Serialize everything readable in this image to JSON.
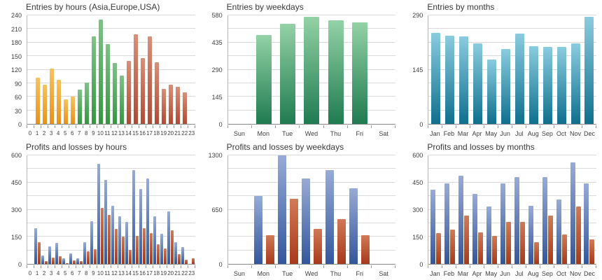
{
  "theme": {
    "background": "#ffffff",
    "grid_color": "#d9d9d9",
    "axis_color": "#8a8a8a",
    "label_color": "#3d3d3d",
    "title_color": "#383838",
    "profit_blue_top": "#97abd6",
    "profit_blue_bottom": "#33569c",
    "loss_red_top": "#d17a57",
    "loss_red_bottom": "#a63a1b"
  },
  "chart_data": [
    {
      "type": "bar",
      "title": "Entries by hours (Asia,Europe,USA)",
      "xlabel": "",
      "ylabel": "",
      "ylim": [
        0,
        240
      ],
      "y_labels": [
        0,
        30,
        60,
        90,
        120,
        150,
        180,
        210,
        240
      ],
      "grid_intervals": 8,
      "legend": "none",
      "categories": [
        "0",
        "1",
        "2",
        "3",
        "4",
        "5",
        "6",
        "7",
        "8",
        "9",
        "10",
        "11",
        "12",
        "13",
        "14",
        "15",
        "16",
        "17",
        "18",
        "19",
        "20",
        "21",
        "22",
        "23"
      ],
      "values": [
        0,
        102,
        86,
        123,
        97,
        54,
        61,
        76,
        92,
        194,
        230,
        176,
        135,
        107,
        139,
        198,
        146,
        193,
        136,
        78,
        86,
        82,
        69,
        0
      ],
      "palette": {
        "asia": {
          "top": "#f7c35f",
          "bottom": "#e8911a"
        },
        "europe": {
          "top": "#7fc289",
          "bottom": "#35973f"
        },
        "usa": {
          "top": "#d98f78",
          "bottom": "#b14a31"
        }
      },
      "value_palette": [
        "",
        "asia",
        "asia",
        "asia",
        "asia",
        "asia",
        "asia",
        "europe",
        "europe",
        "europe",
        "europe",
        "europe",
        "europe",
        "europe",
        "usa",
        "usa",
        "usa",
        "usa",
        "usa",
        "usa",
        "usa",
        "usa",
        "usa",
        ""
      ]
    },
    {
      "type": "bar",
      "title": "Entries by weekdays",
      "xlabel": "",
      "ylabel": "",
      "ylim": [
        0,
        580
      ],
      "y_labels": [
        0,
        145,
        290,
        435,
        580
      ],
      "grid_intervals": 8,
      "legend": "none",
      "categories": [
        "Sun",
        "Mon",
        "Tue",
        "Wed",
        "Thu",
        "Fri",
        "Sat"
      ],
      "values": [
        0,
        475,
        534,
        571,
        552,
        541,
        0
      ],
      "bar_color": {
        "top": "#93d2a6",
        "bottom": "#1f7b50"
      }
    },
    {
      "type": "bar",
      "title": "Entries by months",
      "xlabel": "",
      "ylabel": "",
      "ylim": [
        0,
        290
      ],
      "y_labels": [
        0,
        145,
        290
      ],
      "grid_intervals": 8,
      "legend": "none",
      "categories": [
        "Jan",
        "Feb",
        "Mar",
        "Apr",
        "May",
        "Jun",
        "Jul",
        "Aug",
        "Sep",
        "Oct",
        "Nov",
        "Dec"
      ],
      "values": [
        244,
        236,
        234,
        216,
        172,
        200,
        241,
        208,
        205,
        205,
        215,
        286
      ],
      "bar_color": {
        "top": "#8accdf",
        "bottom": "#0f6f8d"
      }
    },
    {
      "type": "bar",
      "title": "Profits and losses by hours",
      "xlabel": "",
      "ylabel": "",
      "ylim": [
        0,
        600
      ],
      "y_labels": [
        0,
        150,
        300,
        450,
        600
      ],
      "grid_intervals": 8,
      "legend": "none",
      "categories": [
        "0",
        "1",
        "2",
        "3",
        "4",
        "5",
        "6",
        "7",
        "8",
        "9",
        "10",
        "11",
        "12",
        "13",
        "14",
        "15",
        "16",
        "17",
        "18",
        "19",
        "20",
        "21",
        "22",
        "23"
      ],
      "series": [
        {
          "name": "profits",
          "color": {
            "top": "#97abd6",
            "bottom": "#33569c"
          },
          "values": [
            0,
            197,
            48,
            98,
            115,
            31,
            59,
            30,
            120,
            236,
            553,
            466,
            321,
            262,
            231,
            517,
            414,
            472,
            264,
            168,
            290,
            120,
            92,
            0
          ]
        },
        {
          "name": "losses",
          "color": {
            "top": "#d17a57",
            "bottom": "#a63a1b"
          },
          "values": [
            0,
            120,
            15,
            34,
            43,
            3,
            18,
            14,
            68,
            82,
            308,
            272,
            192,
            150,
            79,
            154,
            197,
            171,
            107,
            85,
            185,
            55,
            25,
            32
          ]
        }
      ]
    },
    {
      "type": "bar",
      "title": "Profits and losses by weekdays",
      "xlabel": "",
      "ylabel": "",
      "ylim": [
        0,
        1300
      ],
      "y_labels": [
        0,
        650,
        1300
      ],
      "grid_intervals": 8,
      "legend": "none",
      "categories": [
        "Sun",
        "Mon",
        "Tue",
        "Wed",
        "Thu",
        "Fri",
        "Sat"
      ],
      "series": [
        {
          "name": "profits",
          "color": {
            "top": "#97abd6",
            "bottom": "#33569c"
          },
          "values": [
            0,
            810,
            1300,
            1025,
            1125,
            905,
            0
          ]
        },
        {
          "name": "losses",
          "color": {
            "top": "#d17a57",
            "bottom": "#a63a1b"
          },
          "values": [
            0,
            345,
            780,
            420,
            535,
            345,
            0
          ]
        }
      ]
    },
    {
      "type": "bar",
      "title": "Profits and losses by months",
      "xlabel": "",
      "ylabel": "",
      "ylim": [
        0,
        600
      ],
      "y_labels": [
        0,
        150,
        300,
        450,
        600
      ],
      "grid_intervals": 8,
      "legend": "none",
      "categories": [
        "Jan",
        "Feb",
        "Mar",
        "Apr",
        "May",
        "Jun",
        "Jul",
        "Aug",
        "Sep",
        "Oct",
        "Nov",
        "Dec"
      ],
      "series": [
        {
          "name": "profits",
          "color": {
            "top": "#97abd6",
            "bottom": "#33569c"
          },
          "values": [
            410,
            446,
            489,
            387,
            317,
            446,
            481,
            320,
            479,
            356,
            560,
            446
          ]
        },
        {
          "name": "losses",
          "color": {
            "top": "#d17a57",
            "bottom": "#a63a1b"
          },
          "values": [
            170,
            191,
            268,
            174,
            156,
            233,
            231,
            121,
            266,
            163,
            317,
            137
          ]
        }
      ]
    }
  ]
}
